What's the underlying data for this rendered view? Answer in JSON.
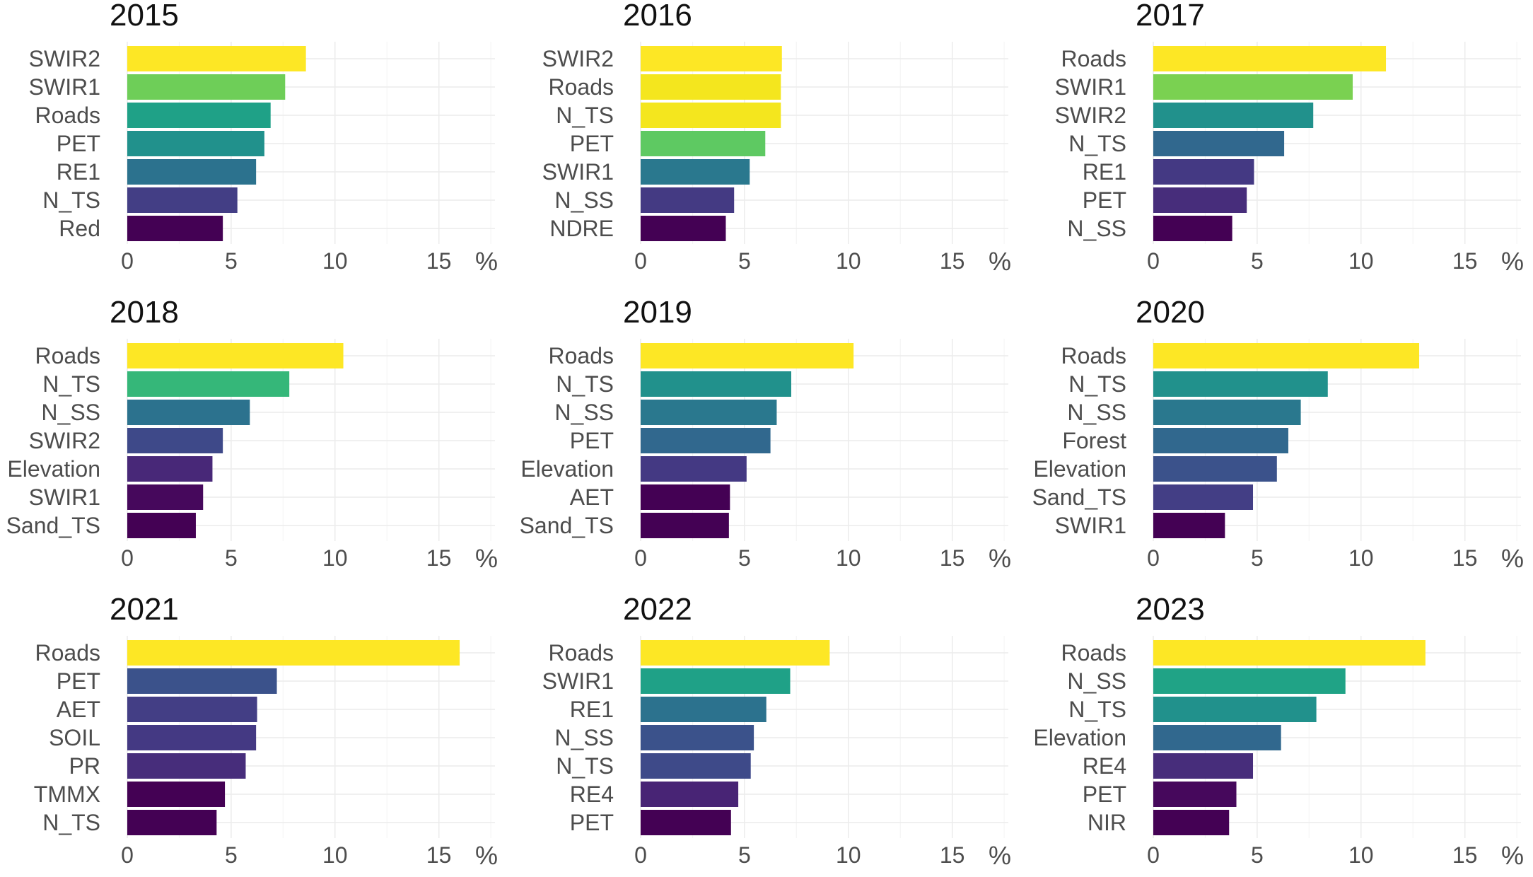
{
  "chart_data": [
    {
      "type": "bar",
      "orientation": "horizontal",
      "title": "2015",
      "categories": [
        "SWIR2",
        "SWIR1",
        "Roads",
        "PET",
        "RE1",
        "N_TS",
        "Red"
      ],
      "values": [
        8.6,
        7.6,
        6.9,
        6.6,
        6.2,
        5.3,
        4.6
      ],
      "colors": [
        "#fde725",
        "#6ece58",
        "#1fa187",
        "#21918c",
        "#2c728e",
        "#433e85",
        "#440154"
      ],
      "xticks": [
        "0",
        "5",
        "10",
        "15"
      ],
      "xlim": [
        0,
        17.7
      ],
      "unit": "%"
    },
    {
      "type": "bar",
      "orientation": "horizontal",
      "title": "2016",
      "categories": [
        "SWIR2",
        "Roads",
        "N_TS",
        "PET",
        "SWIR1",
        "N_SS",
        "NDRE"
      ],
      "values": [
        6.8,
        6.75,
        6.75,
        6.0,
        5.25,
        4.5,
        4.1
      ],
      "colors": [
        "#fde725",
        "#f4e61e",
        "#f4e61e",
        "#5ec962",
        "#2a788e",
        "#443a83",
        "#440154"
      ],
      "xticks": [
        "0",
        "5",
        "10",
        "15"
      ],
      "xlim": [
        0,
        17.7
      ],
      "unit": "%"
    },
    {
      "type": "bar",
      "orientation": "horizontal",
      "title": "2017",
      "categories": [
        "Roads",
        "SWIR1",
        "SWIR2",
        "N_TS",
        "RE1",
        "PET",
        "N_SS"
      ],
      "values": [
        11.2,
        9.6,
        7.7,
        6.3,
        4.85,
        4.5,
        3.8
      ],
      "colors": [
        "#fde725",
        "#7ad151",
        "#21918c",
        "#31688e",
        "#443983",
        "#472d7b",
        "#440154"
      ],
      "xticks": [
        "0",
        "5",
        "10",
        "15"
      ],
      "xlim": [
        0,
        17.7
      ],
      "unit": "%"
    },
    {
      "type": "bar",
      "orientation": "horizontal",
      "title": "2018",
      "categories": [
        "Roads",
        "N_TS",
        "N_SS",
        "SWIR2",
        "Elevation",
        "SWIR1",
        "Sand_TS"
      ],
      "values": [
        10.4,
        7.8,
        5.9,
        4.6,
        4.1,
        3.65,
        3.3
      ],
      "colors": [
        "#fde725",
        "#35b779",
        "#2c728e",
        "#3e4989",
        "#482878",
        "#46085c",
        "#440154"
      ],
      "xticks": [
        "0",
        "5",
        "10",
        "15"
      ],
      "xlim": [
        0,
        17.7
      ],
      "unit": "%"
    },
    {
      "type": "bar",
      "orientation": "horizontal",
      "title": "2019",
      "categories": [
        "Roads",
        "N_TS",
        "N_SS",
        "PET",
        "Elevation",
        "AET",
        "Sand_TS"
      ],
      "values": [
        10.25,
        7.25,
        6.55,
        6.25,
        5.1,
        4.3,
        4.25
      ],
      "colors": [
        "#fde725",
        "#21918c",
        "#2a788e",
        "#31688e",
        "#443983",
        "#440154",
        "#440154"
      ],
      "xticks": [
        "0",
        "5",
        "10",
        "15"
      ],
      "xlim": [
        0,
        17.7
      ],
      "unit": "%"
    },
    {
      "type": "bar",
      "orientation": "horizontal",
      "title": "2020",
      "categories": [
        "Roads",
        "N_TS",
        "N_SS",
        "Forest",
        "Elevation",
        "Sand_TS",
        "SWIR1"
      ],
      "values": [
        12.8,
        8.4,
        7.1,
        6.5,
        5.95,
        4.8,
        3.45
      ],
      "colors": [
        "#fde725",
        "#21918c",
        "#2a788e",
        "#31688e",
        "#3b528b",
        "#433e85",
        "#440154"
      ],
      "xticks": [
        "0",
        "5",
        "10",
        "15"
      ],
      "xlim": [
        0,
        17.7
      ],
      "unit": "%"
    },
    {
      "type": "bar",
      "orientation": "horizontal",
      "title": "2021",
      "categories": [
        "Roads",
        "PET",
        "AET",
        "SOIL",
        "PR",
        "TMMX",
        "N_TS"
      ],
      "values": [
        16.0,
        7.2,
        6.25,
        6.2,
        5.7,
        4.7,
        4.3
      ],
      "colors": [
        "#fde725",
        "#3b528b",
        "#433e85",
        "#443983",
        "#472d7b",
        "#440154",
        "#440154"
      ],
      "xticks": [
        "0",
        "5",
        "10",
        "15"
      ],
      "xlim": [
        0,
        17.7
      ],
      "unit": "%"
    },
    {
      "type": "bar",
      "orientation": "horizontal",
      "title": "2022",
      "categories": [
        "Roads",
        "SWIR1",
        "RE1",
        "N_SS",
        "N_TS",
        "RE4",
        "PET"
      ],
      "values": [
        9.1,
        7.2,
        6.05,
        5.45,
        5.3,
        4.7,
        4.35
      ],
      "colors": [
        "#fde725",
        "#1fa187",
        "#2c728e",
        "#3b528b",
        "#3e4a89",
        "#482475",
        "#440154"
      ],
      "xticks": [
        "0",
        "5",
        "10",
        "15"
      ],
      "xlim": [
        0,
        17.7
      ],
      "unit": "%"
    },
    {
      "type": "bar",
      "orientation": "horizontal",
      "title": "2023",
      "categories": [
        "Roads",
        "N_SS",
        "N_TS",
        "Elevation",
        "RE4",
        "PET",
        "NIR"
      ],
      "values": [
        13.1,
        9.25,
        7.85,
        6.15,
        4.8,
        4.0,
        3.65
      ],
      "colors": [
        "#fde725",
        "#20a386",
        "#21918c",
        "#31688e",
        "#472d7b",
        "#46085c",
        "#440154"
      ],
      "xticks": [
        "0",
        "5",
        "10",
        "15"
      ],
      "xlim": [
        0,
        17.7
      ],
      "unit": "%"
    }
  ]
}
